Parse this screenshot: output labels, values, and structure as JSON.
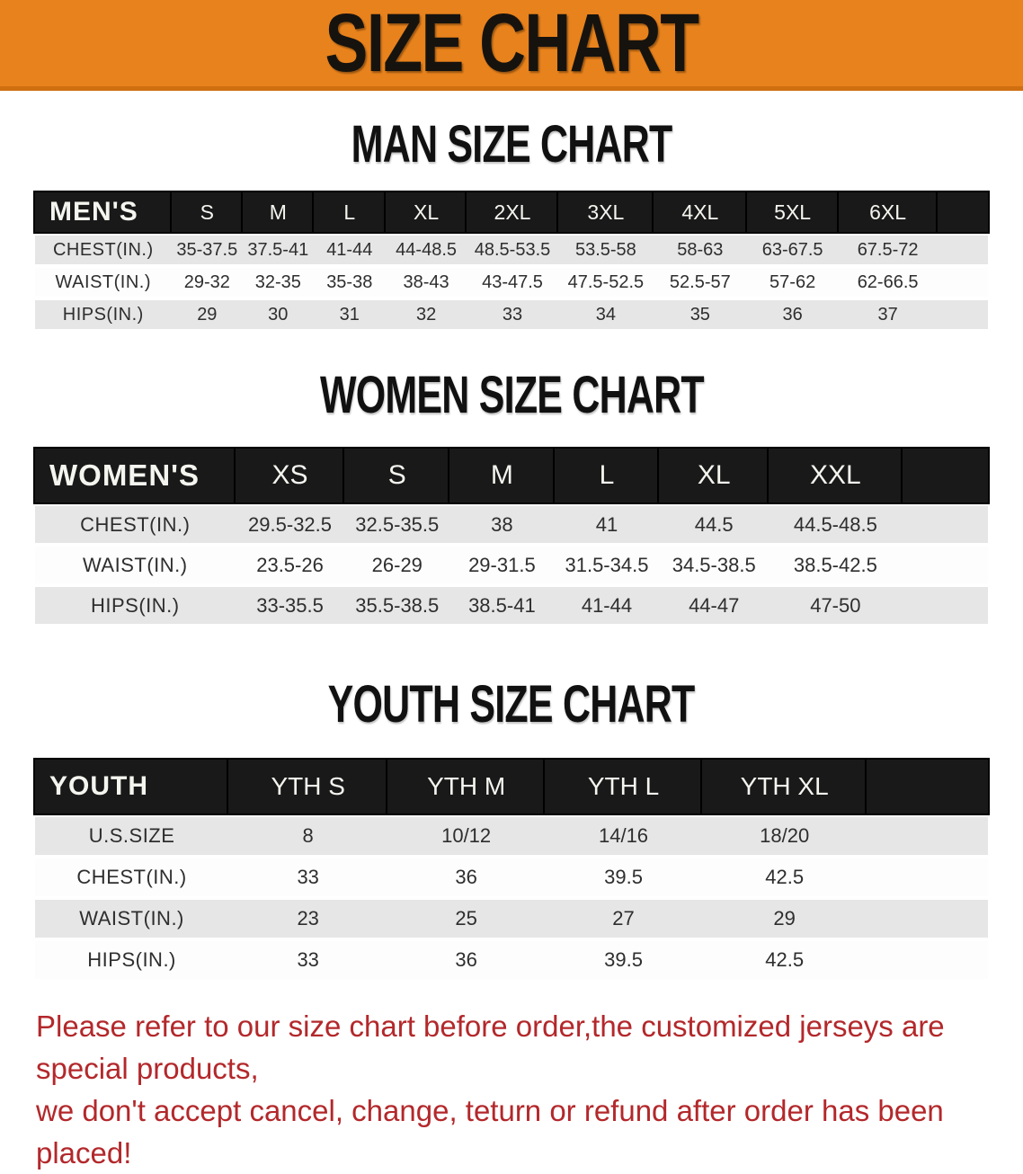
{
  "banner": {
    "title": "SIZE CHART"
  },
  "sections": [
    {
      "id": "men",
      "heading": "MAN SIZE CHART",
      "table": {
        "header_label": "MEN'S",
        "columns": [
          "S",
          "M",
          "L",
          "XL",
          "2XL",
          "3XL",
          "4XL",
          "5XL",
          "6XL"
        ],
        "rows": [
          {
            "label": "CHEST(IN.)",
            "values": [
              "35-37.5",
              "37.5-41",
              "41-44",
              "44-48.5",
              "48.5-53.5",
              "53.5-58",
              "58-63",
              "63-67.5",
              "67.5-72"
            ]
          },
          {
            "label": "WAIST(IN.)",
            "values": [
              "29-32",
              "32-35",
              "35-38",
              "38-43",
              "43-47.5",
              "47.5-52.5",
              "52.5-57",
              "57-62",
              "62-66.5"
            ]
          },
          {
            "label": "HIPS(IN.)",
            "values": [
              "29",
              "30",
              "31",
              "32",
              "33",
              "34",
              "35",
              "36",
              "37"
            ]
          }
        ]
      }
    },
    {
      "id": "women",
      "heading": "WOMEN SIZE CHART",
      "table": {
        "header_label": "WOMEN'S",
        "columns": [
          "XS",
          "S",
          "M",
          "L",
          "XL",
          "XXL"
        ],
        "rows": [
          {
            "label": "CHEST(IN.)",
            "values": [
              "29.5-32.5",
              "32.5-35.5",
              "38",
              "41",
              "44.5",
              "44.5-48.5"
            ]
          },
          {
            "label": "WAIST(IN.)",
            "values": [
              "23.5-26",
              "26-29",
              "29-31.5",
              "31.5-34.5",
              "34.5-38.5",
              "38.5-42.5"
            ]
          },
          {
            "label": "HIPS(IN.)",
            "values": [
              "33-35.5",
              "35.5-38.5",
              "38.5-41",
              "41-44",
              "44-47",
              "47-50"
            ]
          }
        ]
      }
    },
    {
      "id": "youth",
      "heading": "YOUTH SIZE CHART",
      "table": {
        "header_label": "YOUTH",
        "columns": [
          "YTH S",
          "YTH M",
          "YTH L",
          "YTH XL"
        ],
        "rows": [
          {
            "label": "U.S.SIZE",
            "values": [
              "8",
              "10/12",
              "14/16",
              "18/20"
            ]
          },
          {
            "label": "CHEST(IN.)",
            "values": [
              "33",
              "36",
              "39.5",
              "42.5"
            ]
          },
          {
            "label": "WAIST(IN.)",
            "values": [
              "23",
              "25",
              "27",
              "29"
            ]
          },
          {
            "label": "HIPS(IN.)",
            "values": [
              "33",
              "36",
              "39.5",
              "42.5"
            ]
          }
        ]
      }
    }
  ],
  "disclaimer": {
    "line1": "Please refer to our size chart before order,the customized jerseys are special products,",
    "line2": "we don't accept cancel, change, teturn or refund after order has been placed!"
  },
  "colors": {
    "banner_bg": "#e8821c",
    "banner_edge": "#cf6f10",
    "band_bg": "#191919",
    "row_gray": "#e6e6e6",
    "row_white": "#fdfdfd",
    "text_dark": "#2e2e2e",
    "disclaimer_red": "#b3282b"
  }
}
